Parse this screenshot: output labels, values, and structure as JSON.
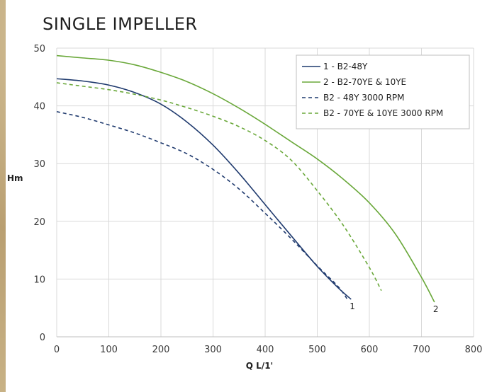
{
  "chart_data": {
    "type": "line",
    "title": "SINGLE IMPELLER",
    "xlabel": "Q L/1'",
    "ylabel": "Hm",
    "xlim": [
      0,
      800
    ],
    "ylim": [
      0,
      50
    ],
    "x_ticks": [
      "0",
      "100",
      "200",
      "300",
      "400",
      "500",
      "600",
      "700",
      "800"
    ],
    "y_ticks": [
      "0",
      "10",
      "20",
      "30",
      "40",
      "50"
    ],
    "grid": true,
    "legend_position": "top-right",
    "series": [
      {
        "name": "1 - B2-48Y",
        "color": "#1f3a6e",
        "dash": "solid",
        "end_label": "1",
        "x": [
          0,
          50,
          100,
          150,
          200,
          250,
          300,
          350,
          400,
          450,
          500,
          540,
          565
        ],
        "y": [
          44.7,
          44.3,
          43.6,
          42.3,
          40.3,
          37.2,
          33.2,
          28.3,
          22.9,
          17.5,
          12.2,
          8.5,
          6.5
        ]
      },
      {
        "name": "2 - B2-70YE & 10YE",
        "color": "#6aa83a",
        "dash": "solid",
        "end_label": "2",
        "x": [
          0,
          50,
          100,
          150,
          200,
          250,
          300,
          350,
          400,
          450,
          500,
          550,
          600,
          650,
          700,
          725
        ],
        "y": [
          48.7,
          48.3,
          47.9,
          47.1,
          45.8,
          44.2,
          42.1,
          39.6,
          36.8,
          33.8,
          30.8,
          27.3,
          23.2,
          17.8,
          10.3,
          6.0
        ]
      },
      {
        "name": "B2 - 48Y 3000 RPM",
        "color": "#1f3a6e",
        "dash": "dashed",
        "x": [
          0,
          50,
          100,
          150,
          200,
          250,
          300,
          350,
          400,
          450,
          500,
          540,
          560
        ],
        "y": [
          39.0,
          38.0,
          36.7,
          35.3,
          33.6,
          31.7,
          29.0,
          25.6,
          21.4,
          17.0,
          12.3,
          8.7,
          6.2
        ]
      },
      {
        "name": "B2 - 70YE & 10YE 3000 RPM",
        "color": "#6aa83a",
        "dash": "dashed",
        "x": [
          0,
          50,
          100,
          150,
          200,
          250,
          300,
          350,
          400,
          450,
          500,
          550,
          600,
          623
        ],
        "y": [
          44.0,
          43.4,
          42.8,
          42.0,
          41.0,
          39.7,
          38.2,
          36.4,
          34.0,
          30.6,
          25.3,
          19.3,
          12.0,
          8.0
        ]
      }
    ]
  }
}
